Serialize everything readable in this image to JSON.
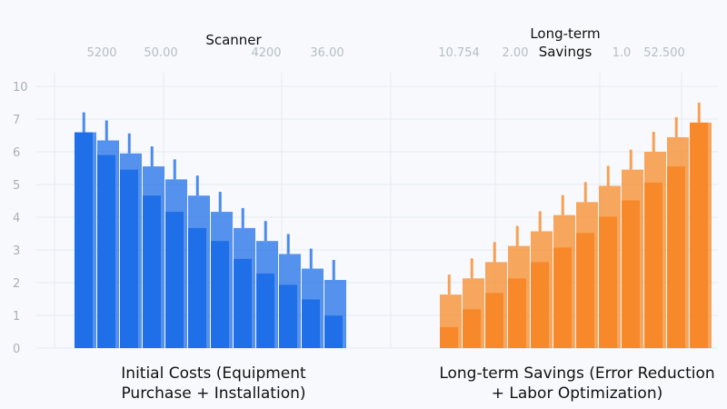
{
  "chart_data": {
    "type": "bar",
    "title": "",
    "yticks": [
      0,
      1,
      2,
      3,
      4,
      5,
      6,
      7,
      10
    ],
    "top_labels": [
      "5200",
      "50.00",
      "4200",
      "36.00",
      "10.754",
      "2.00",
      "1.0",
      "52.500"
    ],
    "panels": [
      {
        "heading": "Scanner",
        "caption": [
          "Initial Costs (Equipment",
          "Purchase + Installation)"
        ],
        "color": "#1f6fe8",
        "back": [
          6.65,
          6.4,
          6.0,
          5.6,
          5.2,
          4.7,
          4.2,
          3.7,
          3.3,
          2.9,
          2.45,
          2.1
        ],
        "front": [
          6.65,
          5.95,
          5.5,
          4.7,
          4.2,
          3.7,
          3.3,
          2.75,
          2.3,
          1.95,
          1.5,
          1.0
        ]
      },
      {
        "heading": "Long-term Savings",
        "caption": [
          "Long-term Savings (Error Reduction",
          "+ Labor Optimization)"
        ],
        "color": "#f7892a",
        "back": [
          1.65,
          2.15,
          2.65,
          3.15,
          3.6,
          4.1,
          4.5,
          5.0,
          5.5,
          6.05,
          6.5,
          6.95
        ],
        "front": [
          0.65,
          1.2,
          1.7,
          2.15,
          2.65,
          3.1,
          3.55,
          4.05,
          4.55,
          5.1,
          5.6,
          6.95
        ]
      }
    ]
  }
}
